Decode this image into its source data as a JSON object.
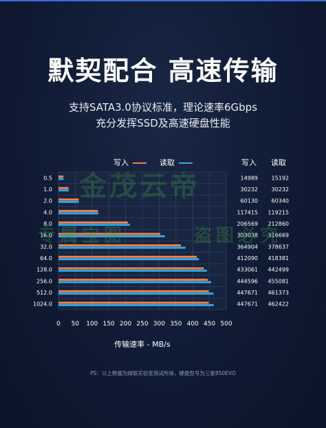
{
  "title": "默契配合 高速传输",
  "subtitle_line1": "支持SATA3.0协议标准，理论速率6Gbps",
  "subtitle_line2": "充分发挥SSD及高速硬盘性能",
  "legend": {
    "write": "写入",
    "read": "读取"
  },
  "table_headers": {
    "write": "写入",
    "read": "读取"
  },
  "footnote": "PS：以上数据为绿联实验室测试所得，硬盘型号为三星850EVO",
  "watermarks": [
    "金茂云帝",
    "专属宝图",
    "盗图必究"
  ],
  "colors": {
    "write": "#f0824a",
    "read": "#2ea8f0",
    "grid": "#3a4a6a",
    "plot_bg": "#1c2a45"
  },
  "chart_data": {
    "type": "bar",
    "orientation": "horizontal",
    "categories": [
      "0.5",
      "1.0",
      "2.0",
      "4.0",
      "8.0",
      "16.0",
      "32.0",
      "64.0",
      "128.0",
      "256.0",
      "512.0",
      "1024.0"
    ],
    "series": [
      {
        "name": "写入",
        "values": [
          14989,
          30232,
          60130,
          117415,
          206569,
          303038,
          364904,
          412090,
          433061,
          444596,
          447671,
          447671
        ]
      },
      {
        "name": "读取",
        "values": [
          15192,
          30232,
          60340,
          119215,
          212860,
          316669,
          378637,
          418381,
          442499,
          455081,
          461373,
          462422
        ]
      }
    ],
    "xlabel": "传输速率 - MB/s",
    "xlim": [
      0,
      500
    ],
    "xticks": [
      0,
      50,
      100,
      150,
      200,
      250,
      300,
      350,
      400,
      450,
      500
    ],
    "grid": true
  }
}
